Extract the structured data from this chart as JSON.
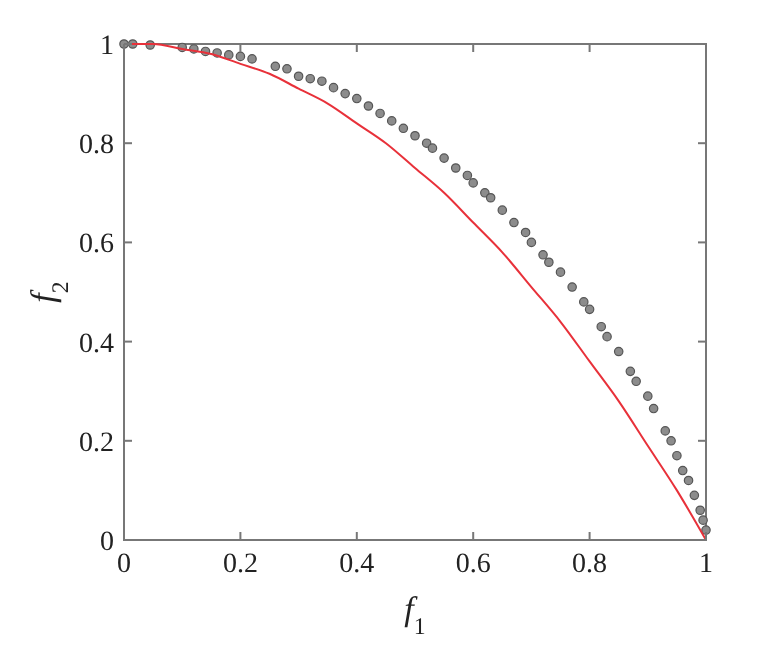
{
  "chart_data": {
    "type": "scatter",
    "xlabel": "f$_{1}$",
    "ylabel": "f$_{2}$",
    "xlim": [
      0,
      1
    ],
    "ylim": [
      0,
      1
    ],
    "xticks": [
      0,
      0.2,
      0.4,
      0.6,
      0.8,
      1
    ],
    "yticks": [
      0,
      0.2,
      0.4,
      0.6,
      0.8,
      1
    ],
    "series": [
      {
        "color": "#8c8c8c",
        "marker": "circle",
        "x": [
          0,
          0.015,
          0.045,
          0.1,
          0.12,
          0.14,
          0.16,
          0.18,
          0.2,
          0.22,
          0.26,
          0.28,
          0.3,
          0.32,
          0.34,
          0.36,
          0.38,
          0.4,
          0.42,
          0.44,
          0.46,
          0.48,
          0.5,
          0.52,
          0.53,
          0.55,
          0.57,
          0.59,
          0.6,
          0.62,
          0.63,
          0.65,
          0.67,
          0.69,
          0.7,
          0.72,
          0.73,
          0.75,
          0.77,
          0.79,
          0.8,
          0.82,
          0.83,
          0.85,
          0.87,
          0.88,
          0.9,
          0.91,
          0.93,
          0.94,
          0.95,
          0.96,
          0.97,
          0.98,
          0.99,
          0.995,
          1.0
        ],
        "values": [
          1.0,
          1.0,
          0.998,
          0.993,
          0.99,
          0.985,
          0.982,
          0.978,
          0.975,
          0.97,
          0.955,
          0.95,
          0.935,
          0.93,
          0.925,
          0.912,
          0.9,
          0.89,
          0.875,
          0.86,
          0.845,
          0.83,
          0.815,
          0.8,
          0.79,
          0.77,
          0.75,
          0.735,
          0.72,
          0.7,
          0.69,
          0.665,
          0.64,
          0.62,
          0.6,
          0.575,
          0.56,
          0.54,
          0.51,
          0.48,
          0.465,
          0.43,
          0.41,
          0.38,
          0.34,
          0.32,
          0.29,
          0.265,
          0.22,
          0.2,
          0.17,
          0.14,
          0.12,
          0.09,
          0.06,
          0.04,
          0.02
        ]
      },
      {
        "type": "line",
        "color": "#e8313a",
        "line_style": "solid",
        "x": [
          0,
          0.05,
          0.1,
          0.15,
          0.2,
          0.25,
          0.3,
          0.35,
          0.4,
          0.45,
          0.5,
          0.55,
          0.6,
          0.65,
          0.7,
          0.75,
          0.8,
          0.85,
          0.9,
          0.95,
          1
        ],
        "values": [
          1,
          1.0,
          0.99,
          0.98,
          0.96,
          0.94,
          0.91,
          0.88,
          0.84,
          0.8,
          0.75,
          0.7,
          0.64,
          0.58,
          0.51,
          0.44,
          0.36,
          0.28,
          0.19,
          0.1,
          0
        ]
      }
    ]
  }
}
